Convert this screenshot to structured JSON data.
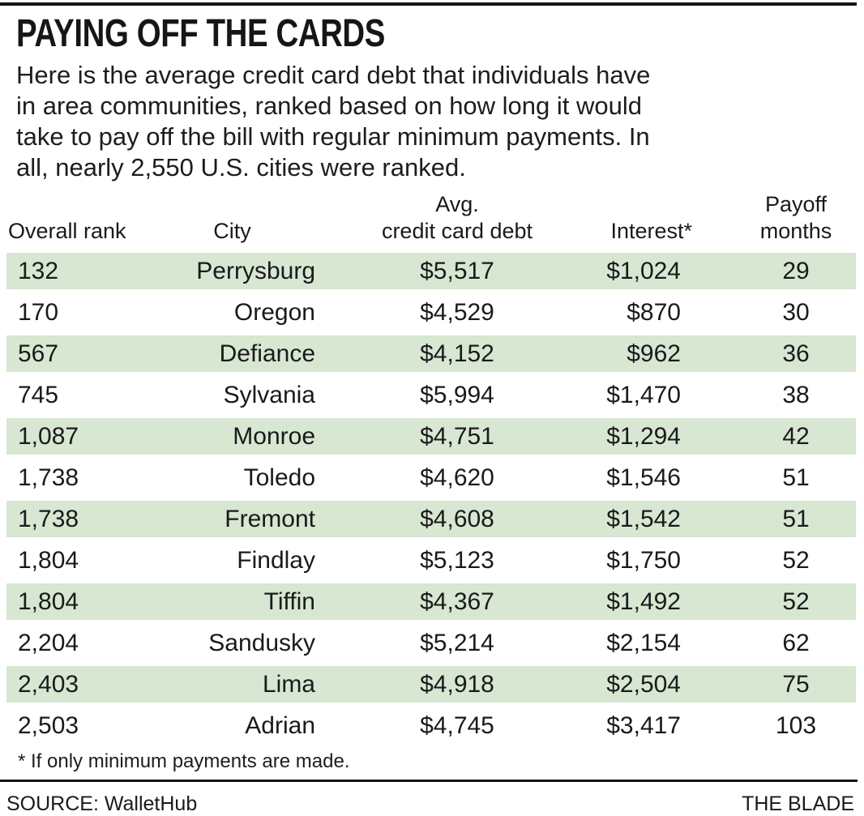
{
  "title": "PAYING OFF THE CARDS",
  "intro": {
    "lines": [
      "Here is the average credit card debt that individuals have",
      "in area communities, ranked based on how long it would",
      "take to pay off the bill with regular minimum payments. In",
      "all, nearly 2,550 U.S. cities were ranked."
    ]
  },
  "header": {
    "rank": "Overall rank",
    "city": "City",
    "debt_line1": "Avg.",
    "debt_line2": "credit card debt",
    "interest": "Interest*",
    "payoff_line1": "Payoff",
    "payoff_line2": "months"
  },
  "chart_data": {
    "type": "table",
    "title": "PAYING OFF THE CARDS",
    "subtitle": "Here is the average credit card debt that individuals have in area communities, ranked based on how long it would take to pay off the bill with regular minimum payments. In all, nearly 2,550 U.S. cities were ranked.",
    "columns": [
      "Overall rank",
      "City",
      "Avg. credit card debt",
      "Interest*",
      "Payoff months"
    ],
    "rows": [
      [
        "132",
        "Perrysburg",
        "$5,517",
        "$1,024",
        "29"
      ],
      [
        "170",
        "Oregon",
        "$4,529",
        "$870",
        "30"
      ],
      [
        "567",
        "Defiance",
        "$4,152",
        "$962",
        "36"
      ],
      [
        "745",
        "Sylvania",
        "$5,994",
        "$1,470",
        "38"
      ],
      [
        "1,087",
        "Monroe",
        "$4,751",
        "$1,294",
        "42"
      ],
      [
        "1,738",
        "Toledo",
        "$4,620",
        "$1,546",
        "51"
      ],
      [
        "1,738",
        "Fremont",
        "$4,608",
        "$1,542",
        "51"
      ],
      [
        "1,804",
        "Findlay",
        "$5,123",
        "$1,750",
        "52"
      ],
      [
        "1,804",
        "Tiffin",
        "$4,367",
        "$1,492",
        "52"
      ],
      [
        "2,204",
        "Sandusky",
        "$5,214",
        "$2,154",
        "62"
      ],
      [
        "2,403",
        "Lima",
        "$4,918",
        "$2,504",
        "75"
      ],
      [
        "2,503",
        "Adrian",
        "$4,745",
        "$3,417",
        "103"
      ]
    ],
    "row_striping": "alternating rows highlighted green starting with first row",
    "footnote": "* If only minimum payments are made.",
    "source": "SOURCE: WalletHub",
    "credit": "THE BLADE"
  },
  "footnote": "* If only minimum payments are made.",
  "source": "SOURCE: WalletHub",
  "credit": "THE BLADE",
  "colors": {
    "row_highlight": "#d7e7d2",
    "text": "#1a1a1a",
    "rule": "#141414",
    "background": "#ffffff"
  }
}
